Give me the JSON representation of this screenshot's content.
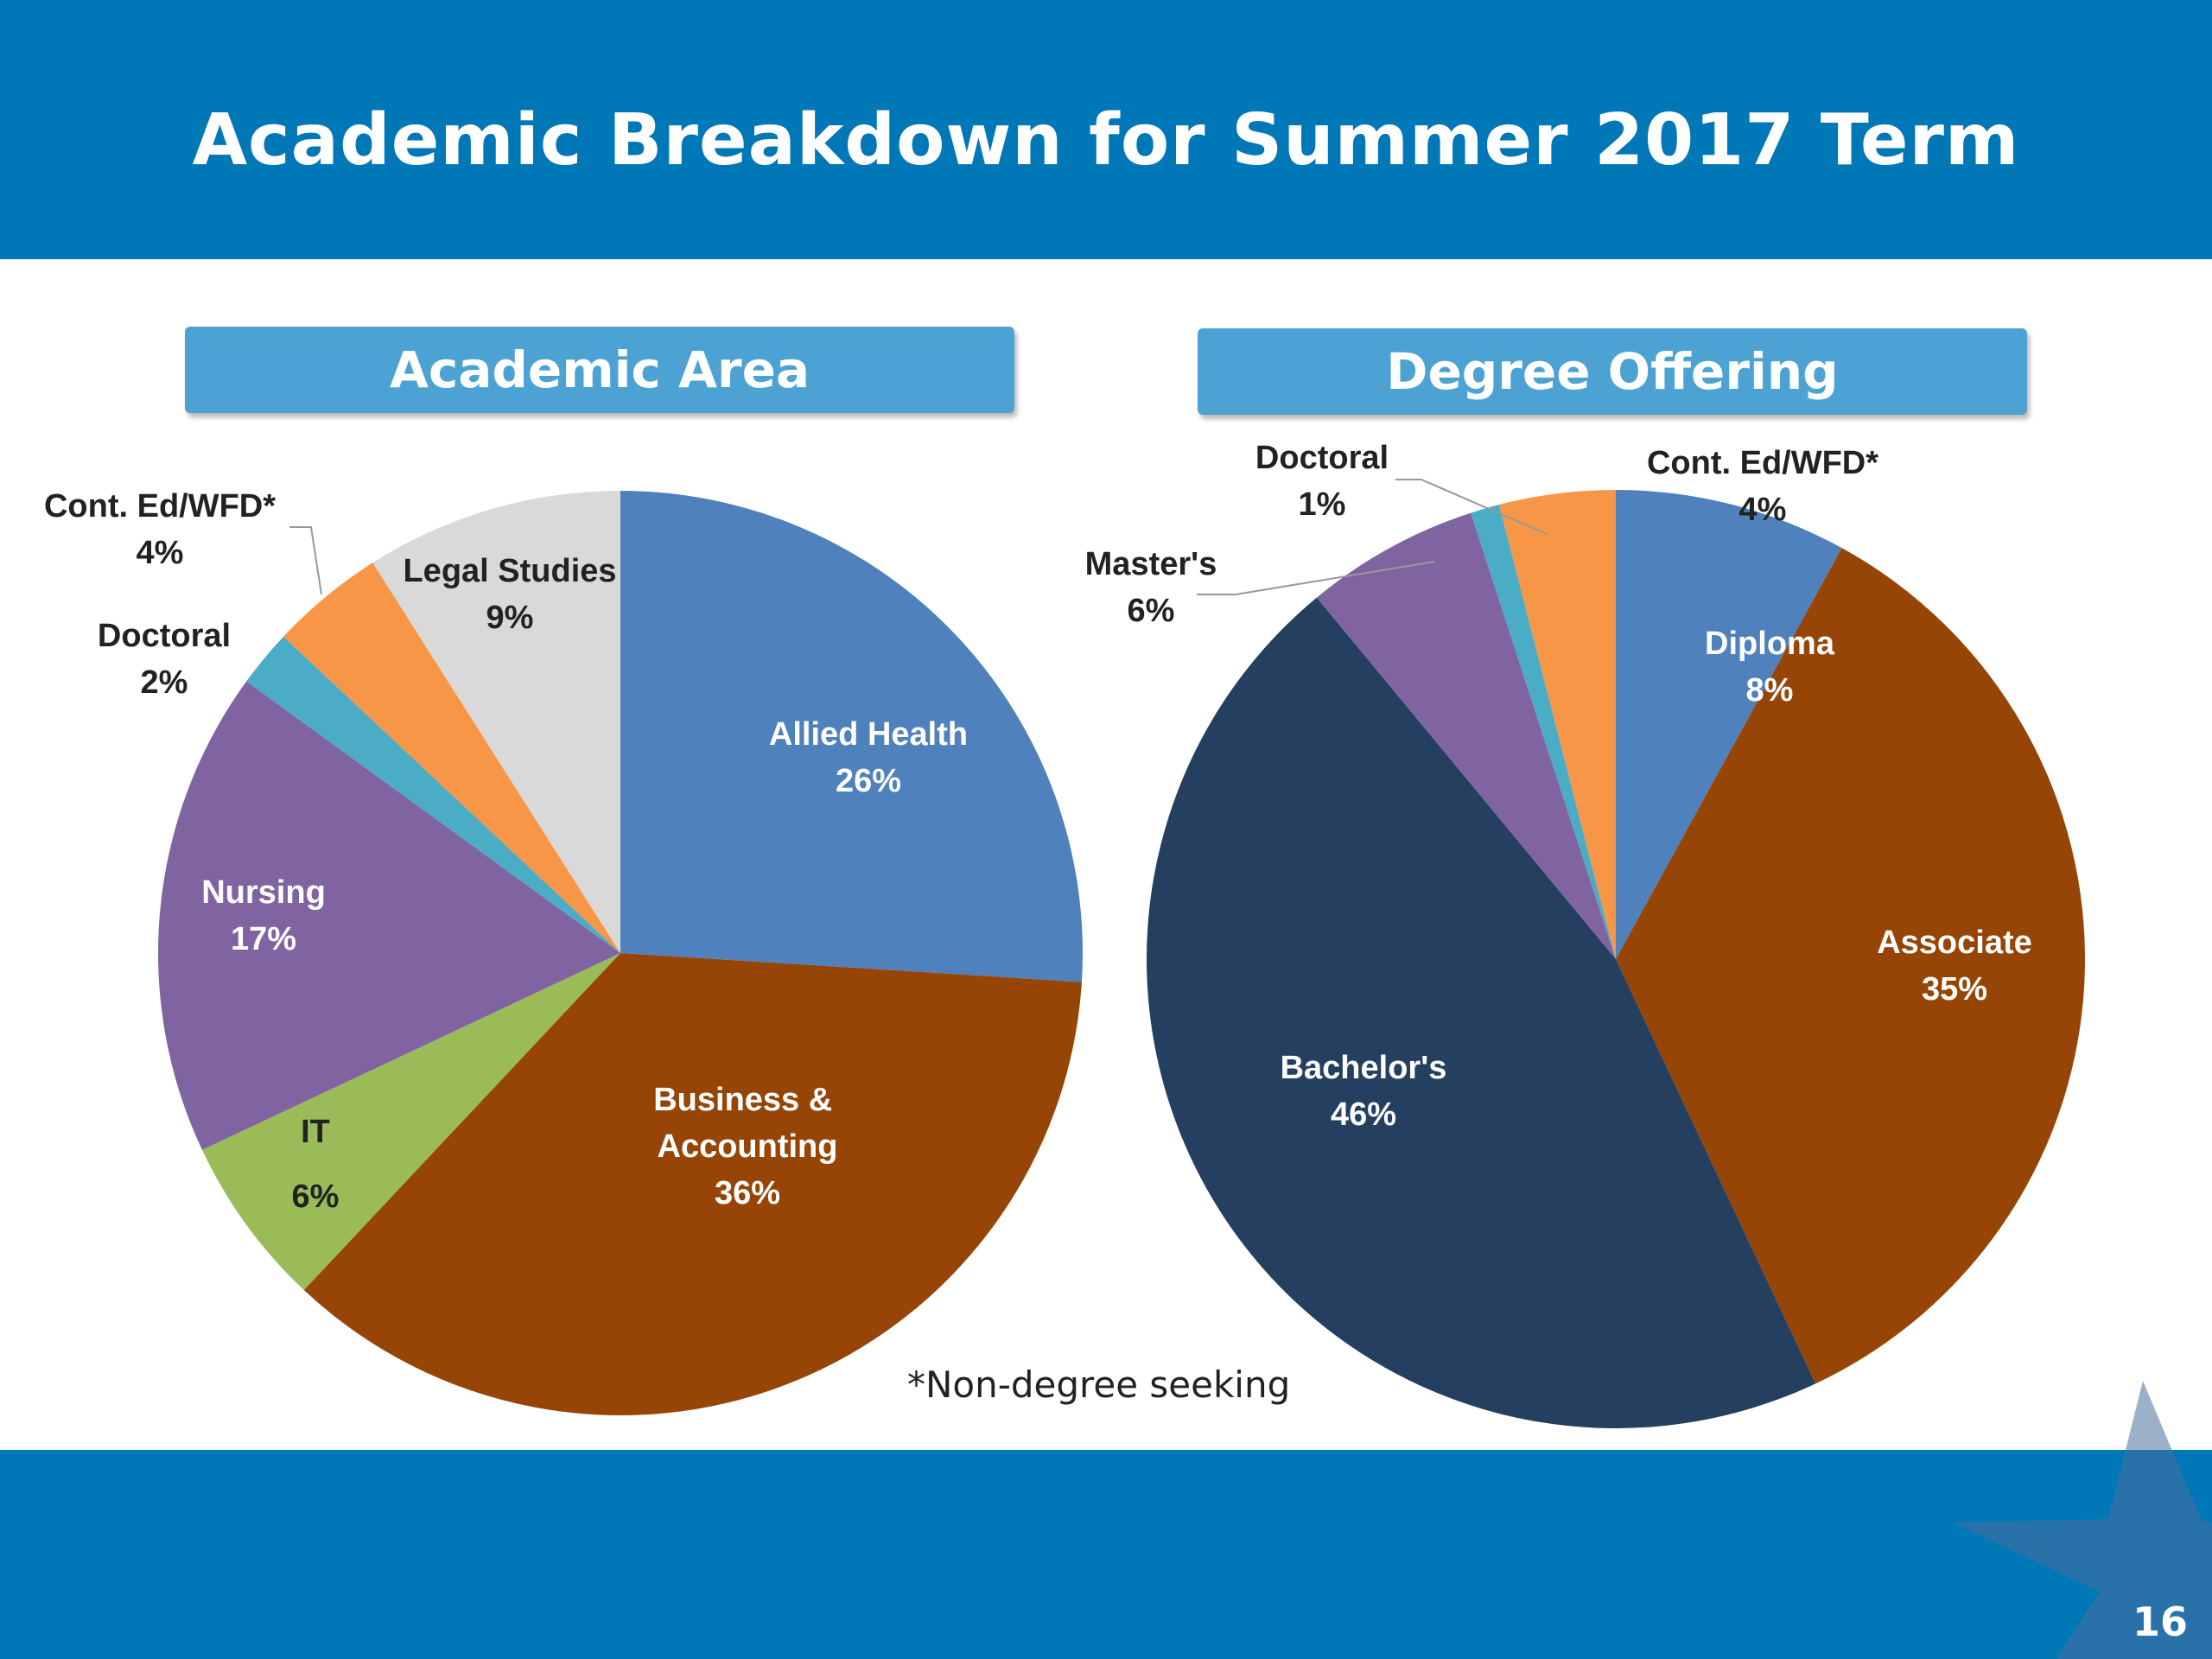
{
  "slide": {
    "title": "Academic Breakdown for Summer 2017 Term",
    "footnote": "*Non-degree seeking",
    "page_number": "16"
  },
  "colors": {
    "band": "#0077b6",
    "section_header": "#4ca3d3"
  },
  "chart_data": [
    {
      "type": "pie",
      "title": "Academic Area",
      "slices": [
        {
          "label": "Allied Health",
          "value": 26,
          "value_label": "26%",
          "color": "#4f81bd",
          "label_color": "#ffffff"
        },
        {
          "label": "Business & Accounting",
          "label_lines": [
            "Business & ",
            "Accounting"
          ],
          "value": 36,
          "value_label": "36%",
          "color": "#974506",
          "label_color": "#ffffff"
        },
        {
          "label": "IT",
          "value": 6,
          "value_label": "6%",
          "color": "#9bbb59",
          "label_color": "#222222"
        },
        {
          "label": "Nursing",
          "value": 17,
          "value_label": "17%",
          "color": "#8064a2",
          "label_color": "#ffffff"
        },
        {
          "label": "Doctoral",
          "value": 2,
          "value_label": "2%",
          "color": "#4bacc6",
          "label_color": "#222222"
        },
        {
          "label": "Cont. Ed/WFD*",
          "value": 4,
          "value_label": "4%",
          "color": "#f79646",
          "label_color": "#222222"
        },
        {
          "label": "Legal Studies",
          "value": 9,
          "value_label": "9%",
          "color": "#d9d9d9",
          "label_color": "#222222"
        }
      ]
    },
    {
      "type": "pie",
      "title": "Degree Offering",
      "slices": [
        {
          "label": "Diploma",
          "value": 8,
          "value_label": "8%",
          "color": "#4f81bd",
          "label_color": "#ffffff"
        },
        {
          "label": "Associate",
          "value": 35,
          "value_label": "35%",
          "color": "#974506",
          "label_color": "#ffffff"
        },
        {
          "label": "Bachelor's",
          "value": 46,
          "value_label": "46%",
          "color": "#243f60",
          "label_color": "#ffffff"
        },
        {
          "label": "Master's",
          "value": 6,
          "value_label": "6%",
          "color": "#8064a2",
          "label_color": "#222222"
        },
        {
          "label": "Doctoral",
          "value": 1,
          "value_label": "1%",
          "color": "#4bacc6",
          "label_color": "#222222"
        },
        {
          "label": "Cont. Ed/WFD*",
          "value": 4,
          "value_label": "4%",
          "color": "#f79646",
          "label_color": "#222222"
        }
      ]
    }
  ]
}
